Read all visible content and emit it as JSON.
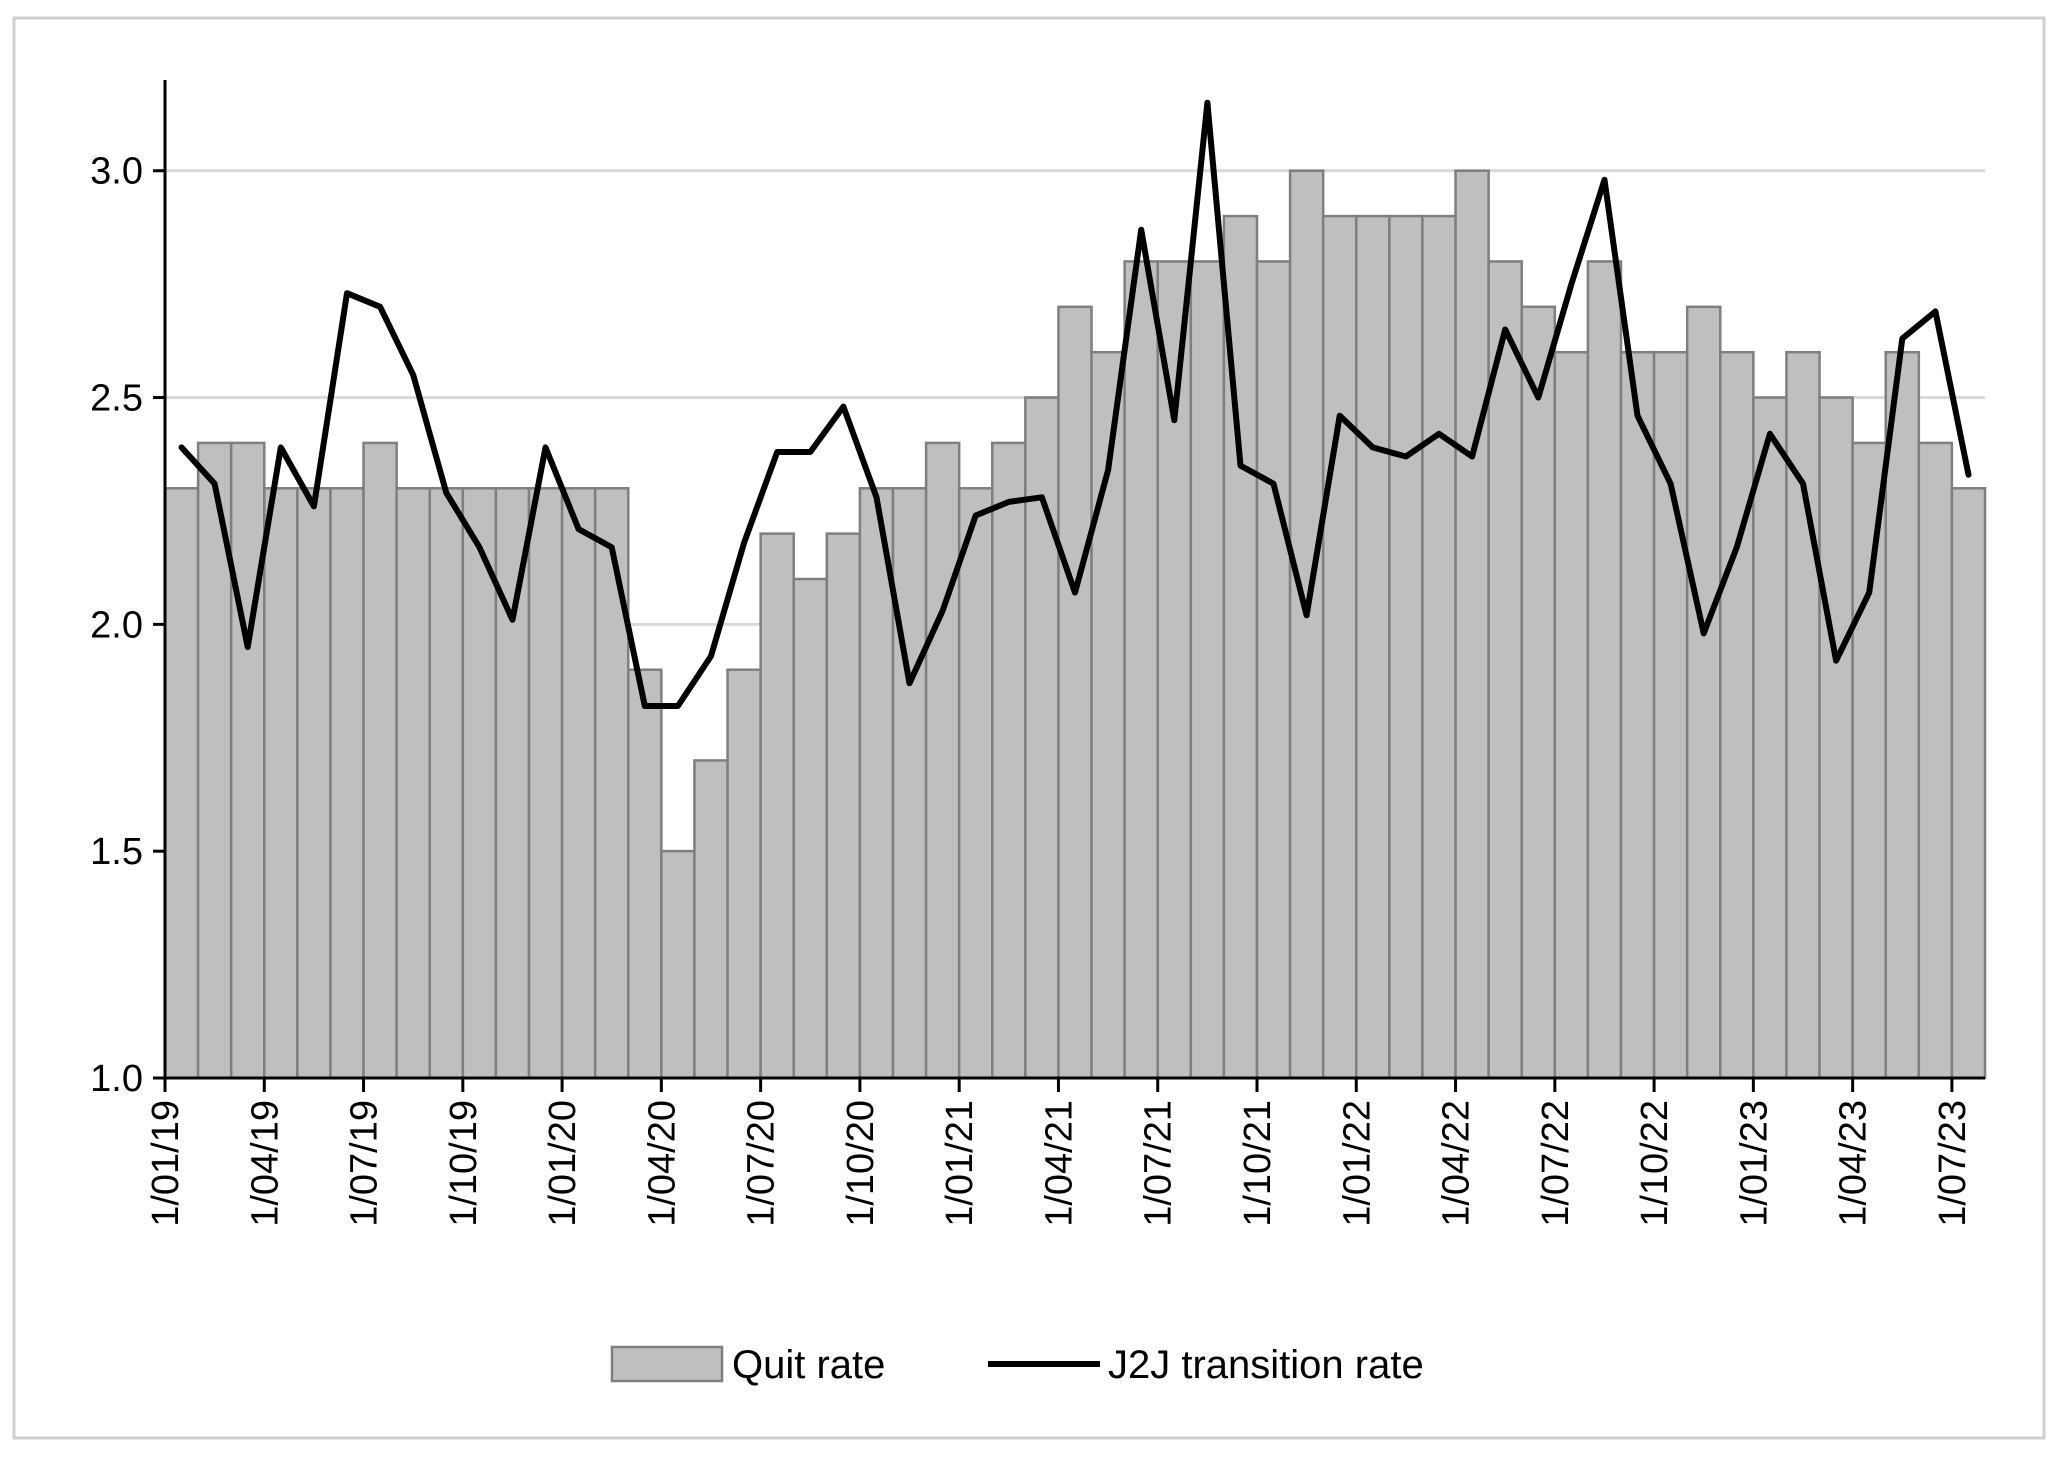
{
  "colors": {
    "bar_fill": "#bfbfbf",
    "bar_stroke": "#7f7f7f",
    "line": "#000000",
    "grid": "#d9d9d9",
    "frame": "#d0d0d0"
  },
  "chart_data": {
    "type": "bar",
    "grid": "horizontal",
    "legend_position": "bottom",
    "ylim": [
      1.0,
      3.2
    ],
    "yticks": [
      "1.0",
      "1.5",
      "2.0",
      "2.5",
      "3.0"
    ],
    "ytick_values": [
      1.0,
      1.5,
      2.0,
      2.5,
      3.0
    ],
    "xtick_labels": [
      "1/01/19",
      "1/04/19",
      "1/07/19",
      "1/10/19",
      "1/01/20",
      "1/04/20",
      "1/07/20",
      "1/10/20",
      "1/01/21",
      "1/04/21",
      "1/07/21",
      "1/10/21",
      "1/01/22",
      "1/04/22",
      "1/07/22",
      "1/10/22",
      "1/01/23",
      "1/04/23",
      "1/07/23"
    ],
    "x": [
      "1/01/19",
      "1/02/19",
      "1/03/19",
      "1/04/19",
      "1/05/19",
      "1/06/19",
      "1/07/19",
      "1/08/19",
      "1/09/19",
      "1/10/19",
      "1/11/19",
      "1/12/19",
      "1/01/20",
      "1/02/20",
      "1/03/20",
      "1/04/20",
      "1/05/20",
      "1/06/20",
      "1/07/20",
      "1/08/20",
      "1/09/20",
      "1/10/20",
      "1/11/20",
      "1/12/20",
      "1/01/21",
      "1/02/21",
      "1/03/21",
      "1/04/21",
      "1/05/21",
      "1/06/21",
      "1/07/21",
      "1/08/21",
      "1/09/21",
      "1/10/21",
      "1/11/21",
      "1/12/21",
      "1/01/22",
      "1/02/22",
      "1/03/22",
      "1/04/22",
      "1/05/22",
      "1/06/22",
      "1/07/22",
      "1/08/22",
      "1/09/22",
      "1/10/22",
      "1/11/22",
      "1/12/22",
      "1/01/23",
      "1/02/23",
      "1/03/23",
      "1/04/23",
      "1/05/23",
      "1/06/23",
      "1/07/23"
    ],
    "series": [
      {
        "name": "Quit rate",
        "kind": "bar",
        "values": [
          2.3,
          2.4,
          2.4,
          2.3,
          2.3,
          2.3,
          2.4,
          2.3,
          2.3,
          2.3,
          2.3,
          2.3,
          2.3,
          2.3,
          1.9,
          1.5,
          1.7,
          1.9,
          2.2,
          2.1,
          2.2,
          2.3,
          2.3,
          2.4,
          2.3,
          2.4,
          2.5,
          2.7,
          2.6,
          2.8,
          2.8,
          2.8,
          2.9,
          2.8,
          3.0,
          2.9,
          2.9,
          2.9,
          2.9,
          3.0,
          2.8,
          2.7,
          2.6,
          2.8,
          2.6,
          2.6,
          2.7,
          2.6,
          2.5,
          2.6,
          2.5,
          2.4,
          2.6,
          2.4,
          2.3
        ]
      },
      {
        "name": "J2J transition rate",
        "kind": "line",
        "values": [
          2.39,
          2.31,
          1.95,
          2.39,
          2.26,
          2.73,
          2.7,
          2.55,
          2.29,
          2.17,
          2.01,
          2.39,
          2.21,
          2.17,
          1.82,
          1.82,
          1.93,
          2.18,
          2.38,
          2.38,
          2.48,
          2.28,
          1.87,
          2.03,
          2.24,
          2.27,
          2.28,
          2.07,
          2.34,
          2.87,
          2.45,
          3.15,
          2.35,
          2.31,
          2.02,
          2.46,
          2.39,
          2.37,
          2.42,
          2.37,
          2.65,
          2.5,
          2.75,
          2.98,
          2.46,
          2.31,
          1.98,
          2.17,
          2.42,
          2.31,
          1.92,
          2.07,
          2.63,
          2.69,
          2.33
        ]
      }
    ]
  }
}
